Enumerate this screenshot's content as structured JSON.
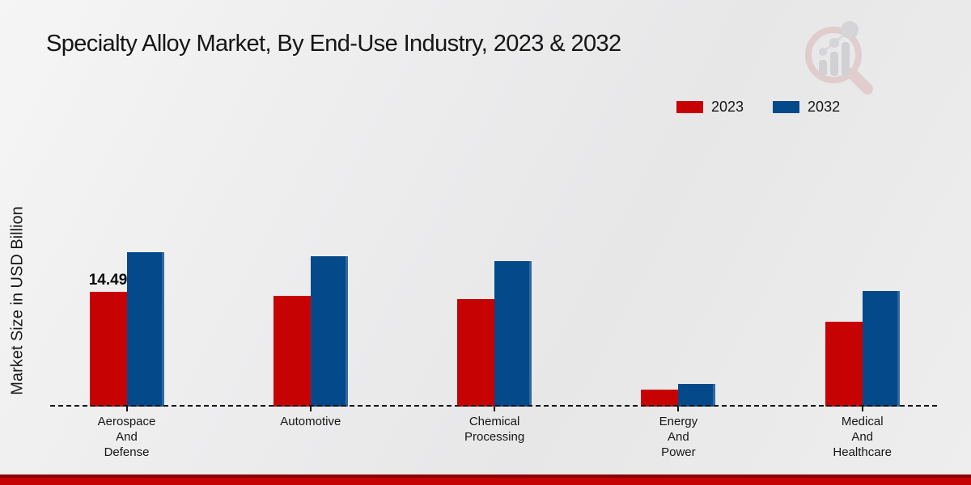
{
  "title": "Specialty Alloy Market, By End-Use Industry, 2023 & 2032",
  "y_axis_label": "Market Size in USD Billion",
  "legend": [
    {
      "label": "2023",
      "color": "#c70202"
    },
    {
      "label": "2032",
      "color": "#04498a"
    }
  ],
  "chart_data": {
    "type": "bar",
    "title": "Specialty Alloy Market, By End-Use Industry, 2023 & 2032",
    "xlabel": "",
    "ylabel": "Market Size in USD Billion",
    "ylim": [
      0,
      21
    ],
    "grid": false,
    "legend_position": "top-right",
    "categories": [
      "Aerospace\nAnd\nDefense",
      "Automotive",
      "Chemical\nProcessing",
      "Energy\nAnd\nPower",
      "Medical\nAnd\nHealthcare"
    ],
    "series": [
      {
        "name": "2023",
        "color": "#c70202",
        "values": [
          14.49,
          14.0,
          13.6,
          2.1,
          10.7
        ]
      },
      {
        "name": "2032",
        "color": "#04498a",
        "values": [
          19.6,
          19.0,
          18.4,
          2.9,
          14.6
        ]
      }
    ],
    "annotations": [
      {
        "category_index": 0,
        "series_index": 0,
        "text": "14.49"
      }
    ]
  },
  "branding": {
    "logo_icon": "bar-chart-magnifier-logo",
    "footer_bar_color": "#c40404"
  }
}
